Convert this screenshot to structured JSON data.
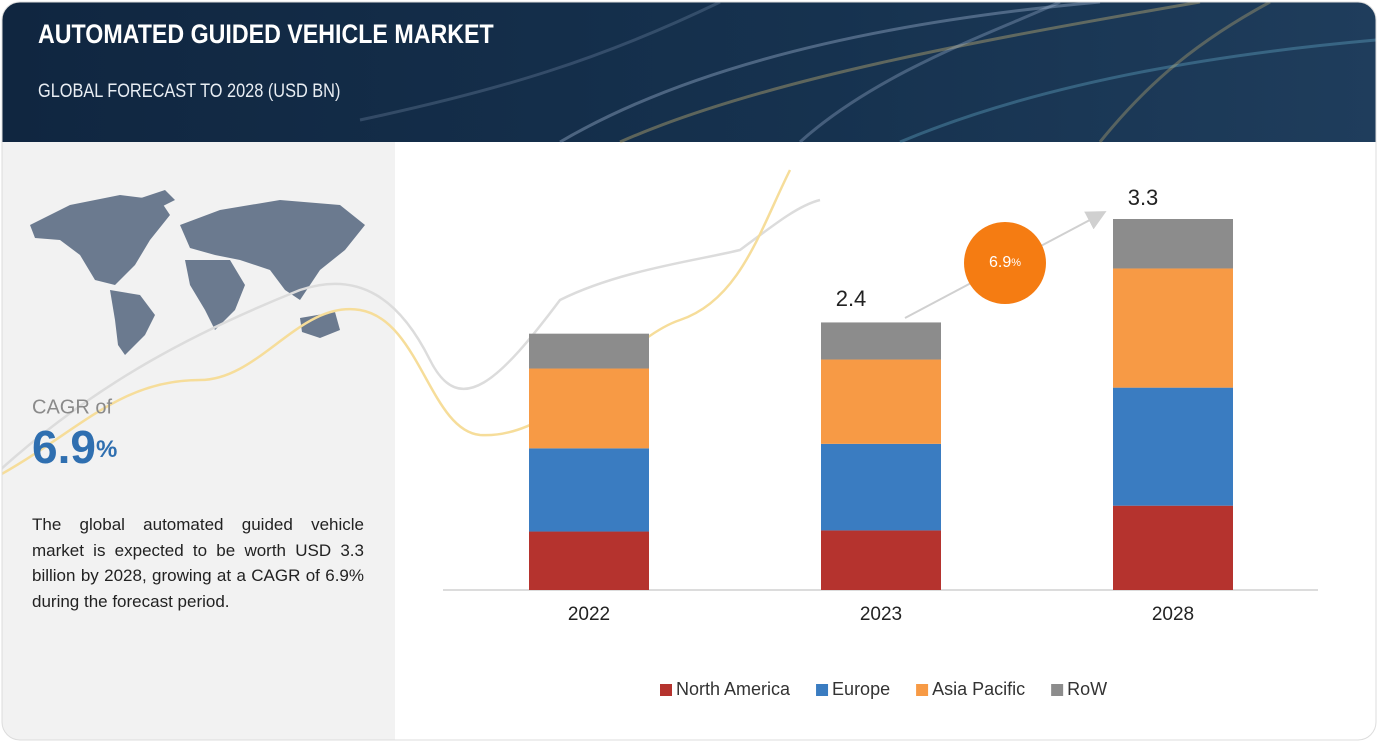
{
  "header": {
    "title": "AUTOMATED GUIDED VEHICLE MARKET",
    "subtitle": "GLOBAL FORECAST TO 2028 (USD BN)"
  },
  "summary": {
    "cagr_label": "CAGR of",
    "cagr_value": "6.9",
    "cagr_unit": "%",
    "description": "The global automated guided vehicle market is expected to be worth USD 3.3 billion by 2028, growing at a CAGR of 6.9% during the forecast period."
  },
  "chart_data": {
    "type": "bar",
    "stacked": true,
    "categories": [
      "2022",
      "2023",
      "2028"
    ],
    "series": [
      {
        "name": "North America",
        "color": "#b5332e",
        "values": [
          0.52,
          0.53,
          0.75
        ]
      },
      {
        "name": "Europe",
        "color": "#3a7cc1",
        "values": [
          0.74,
          0.77,
          1.05
        ]
      },
      {
        "name": "Asia Pacific",
        "color": "#f79a45",
        "values": [
          0.71,
          0.75,
          1.06
        ]
      },
      {
        "name": "RoW",
        "color": "#8c8c8c",
        "values": [
          0.31,
          0.33,
          0.44
        ]
      }
    ],
    "totals": [
      null,
      2.4,
      3.3
    ],
    "growth_label": {
      "value": "6.9",
      "unit": "%"
    },
    "legend": "bottom"
  }
}
